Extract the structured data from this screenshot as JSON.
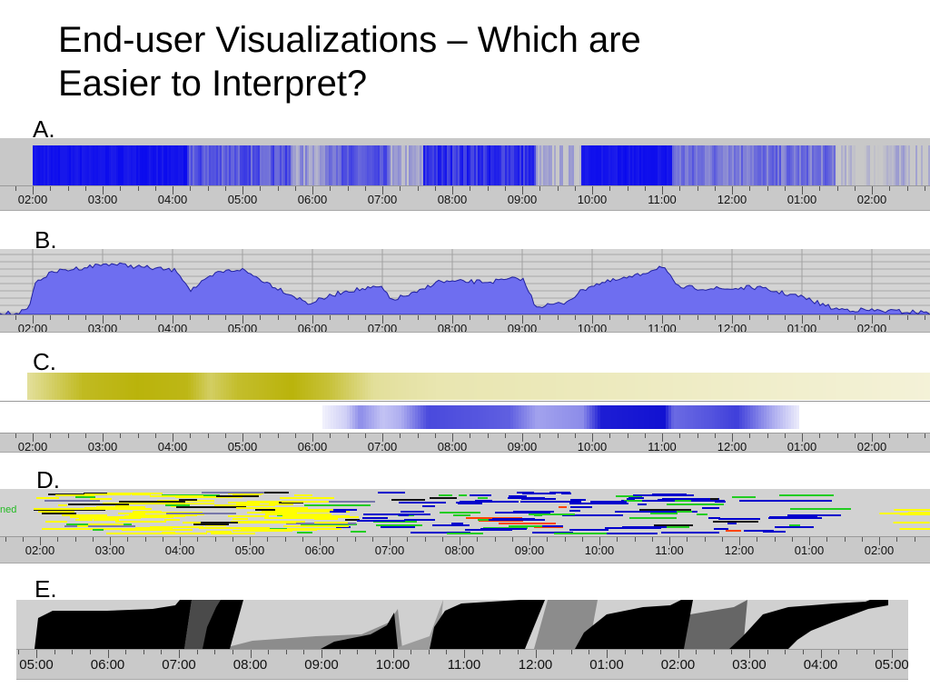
{
  "slide": {
    "title_line1": "End-user Visualizations – Which are",
    "title_line2": "Easier to Interpret?"
  },
  "panels": {
    "a": {
      "label": "A."
    },
    "b": {
      "label": "B."
    },
    "c": {
      "label": "C."
    },
    "d": {
      "label": "D.",
      "side_text": "ned"
    },
    "e": {
      "label": "E."
    }
  },
  "time_axis": {
    "labels": [
      "02:00",
      "03:00",
      "04:00",
      "05:00",
      "06:00",
      "07:00",
      "08:00",
      "09:00",
      "10:00",
      "11:00",
      "12:00",
      "01:00",
      "02:00"
    ]
  },
  "time_axis_e": {
    "labels": [
      "05:00",
      "06:00",
      "07:00",
      "08:00",
      "09:00",
      "10:00",
      "11:00",
      "12:00",
      "01:00",
      "02:00",
      "03:00",
      "04:00",
      "05:00"
    ]
  },
  "colors": {
    "panel_a_blue": "#1010ee",
    "panel_b_fill": "#6e6ef0",
    "panel_c_olive": "#b6b000",
    "panel_c_blue": "#1a1ad0",
    "panel_d_yellow": "#ffff00",
    "panel_d_blue": "#0000cc",
    "axis_bg": "#c9c9c9"
  }
}
